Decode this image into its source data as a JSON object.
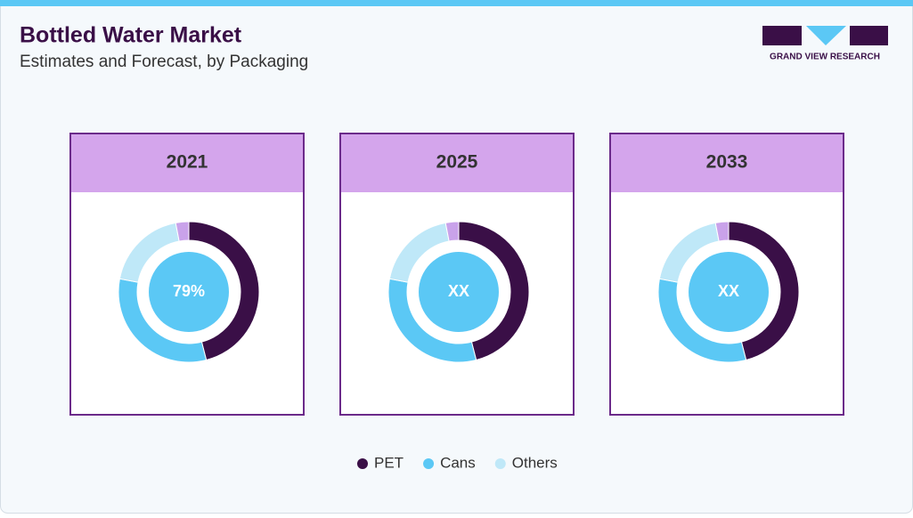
{
  "header": {
    "title": "Bottled Water Market",
    "subtitle": "Estimates and Forecast, by Packaging",
    "logo_text": "GRAND VIEW RESEARCH"
  },
  "legend": {
    "categories": [
      "PET",
      "Cans",
      "Others",
      null
    ],
    "colors": [
      "#3a0f47",
      "#5bc8f5",
      "#bfe8f8",
      "#c9a2ea"
    ]
  },
  "chart_data": [
    {
      "type": "pie",
      "title": "2021",
      "values": [
        46,
        32,
        19,
        3
      ],
      "center_label": "79%"
    },
    {
      "type": "pie",
      "title": "2025",
      "values": [
        46,
        32,
        19,
        3
      ],
      "center_label": "XX"
    },
    {
      "type": "pie",
      "title": "2033",
      "values": [
        46,
        32,
        19,
        3
      ],
      "center_label": "XX"
    }
  ]
}
